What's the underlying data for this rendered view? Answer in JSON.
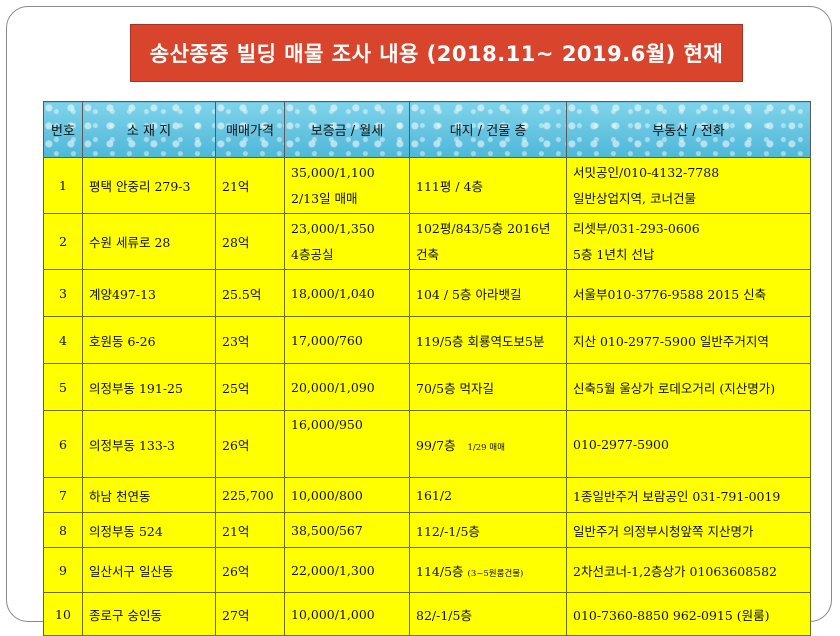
{
  "title": "송산종중 빌딩 매물 조사 내용 (2018.11~ 2019.6월) 현재",
  "headers": [
    "번호",
    "소 재 지",
    "매매가격",
    "보증금 / 월세",
    "대지 / 건물 층",
    "부동산 / 전화"
  ],
  "rows": [
    {
      "no": "1",
      "location": "평택 안중리 279-3",
      "price": "21억",
      "deposit": "35,000/1,100",
      "deposit2": "2/13일 매매",
      "land": "111평 / 4층",
      "land2": "",
      "agency": "서밋공인/010-4132-7788",
      "agency2": "일반상업지역, 코너건물"
    },
    {
      "no": "2",
      "location": "수원 세류로 28",
      "price": "28억",
      "deposit": "23,000/1,350",
      "deposit2": "4층공실",
      "land": "102평/843/5층 2016년",
      "land2": "건축",
      "agency": "리셋부/031-293-0606",
      "agency2": "5층 1년치 선납"
    },
    {
      "no": "3",
      "location": "계양497-13",
      "price": "25.5억",
      "deposit": "18,000/1,040",
      "land": "104 / 5층 아라뱃길",
      "agency": "서울부010-3776-9588 2015 신축"
    },
    {
      "no": "4",
      "location": "호원동 6-26",
      "price": "23억",
      "deposit": "17,000/760",
      "land": "119/5층 회룡역도보5분",
      "agency": "지산 010-2977-5900 일반주거지역"
    },
    {
      "no": "5",
      "location": "의정부동 191-25",
      "price": "25억",
      "deposit": "20,000/1,090",
      "land": "70/5층 먹자길",
      "agency": "신축5월 울상가 로데오거리 (지산명가)"
    },
    {
      "no": "6",
      "location": "의정부동 133-3",
      "price": "26억",
      "deposit": "16,000/950",
      "land": "99/7층",
      "land_small": "1/29 매매",
      "agency": "010-2977-5900"
    },
    {
      "no": "7",
      "location": "하남  천연동",
      "price": "225,700",
      "deposit": "10,000/800",
      "land": "161/2",
      "agency": "1종일반주거 보람공인 031-791-0019"
    },
    {
      "no": "8",
      "location": "의정부동 524",
      "price": "21억",
      "deposit": "38,500/567",
      "land": "112/-1/5층",
      "agency": "일반주거 의정부시청앞쪽 지산명가"
    },
    {
      "no": "9",
      "location": "일산서구 일산동",
      "price": "26억",
      "deposit": "22,000/1,300",
      "land": "114/5층",
      "land_small": "(3~5원룸건물)",
      "agency": "2차선코너-1,2층상가  01063608582"
    },
    {
      "no": "10",
      "location": "종로구 숭인동",
      "price": "27억",
      "deposit": "10,000/1,000",
      "land": "82/-1/5층",
      "agency": "010-7360-8850  962-0915 (원룸)"
    }
  ],
  "colors": {
    "title_bg": "#d8452c",
    "header_bg": "#5fc0de",
    "cell_bg": "#ffff00"
  }
}
